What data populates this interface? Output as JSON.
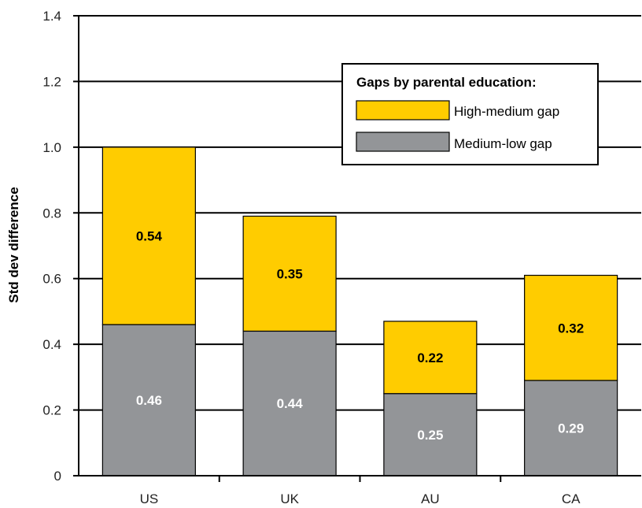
{
  "chart_data": {
    "type": "bar",
    "stacked": true,
    "categories": [
      "US",
      "UK",
      "AU",
      "CA"
    ],
    "series": [
      {
        "name": "Medium-low gap",
        "values": [
          0.46,
          0.44,
          0.25,
          0.29
        ],
        "color": "#939598",
        "label_color": "#ffffff"
      },
      {
        "name": "High-medium gap",
        "values": [
          0.54,
          0.35,
          0.22,
          0.32
        ],
        "color": "#ffcc00",
        "label_color": "#000000"
      }
    ],
    "xlabel": "",
    "ylabel": "Std dev difference",
    "ylim": [
      0,
      1.4
    ],
    "yticks": [
      0,
      0.2,
      0.4,
      0.6,
      0.8,
      1.0,
      1.2,
      1.4
    ],
    "ytick_labels": [
      "0",
      "0.2",
      "0.4",
      "0.6",
      "0.8",
      "1.0",
      "1.2",
      "1.4"
    ],
    "grid": true,
    "legend": {
      "title": "Gaps by parental education:",
      "position": "top-right",
      "entries": [
        "High-medium gap",
        "Medium-low gap"
      ]
    }
  }
}
